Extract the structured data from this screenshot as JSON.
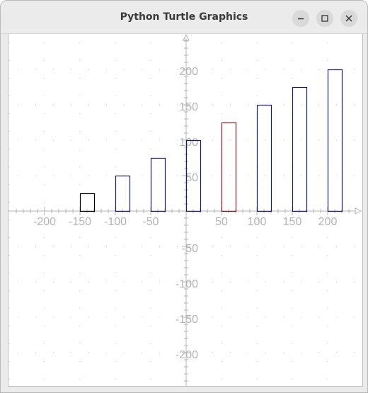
{
  "window": {
    "title": "Python Turtle Graphics",
    "buttons": [
      "minimize",
      "maximize",
      "close"
    ]
  },
  "colors": {
    "axis": "#b5b5b5",
    "grid": "#bdbdbd",
    "tick_label": "#b4b4b4",
    "bar_default": "#000000",
    "bar_blue": "#1a1a6e",
    "bar_red": "#7a1a1a"
  },
  "chart_data": {
    "type": "bar",
    "xlim": [
      -250,
      250
    ],
    "ylim": [
      -250,
      250
    ],
    "grid": true,
    "x_ticks": [
      -200,
      -150,
      -100,
      -50,
      50,
      100,
      150,
      200
    ],
    "y_ticks": [
      -200,
      -150,
      -100,
      -50,
      50,
      100,
      150,
      200
    ],
    "x_tick_labels": [
      "-200",
      "-150",
      "-100",
      "-50",
      "50",
      "100",
      "150",
      "200"
    ],
    "y_tick_labels": [
      "-200",
      "-150",
      "-100",
      "-50",
      "50",
      "100",
      "150",
      "200"
    ],
    "bar_width": 20,
    "bars": [
      {
        "x": -150,
        "value": 25,
        "color": "#000000"
      },
      {
        "x": -100,
        "value": 50,
        "color": "#1a1a6e"
      },
      {
        "x": -50,
        "value": 75,
        "color": "#1a1a6e"
      },
      {
        "x": 0,
        "value": 100,
        "color": "#1a1a6e"
      },
      {
        "x": 50,
        "value": 125,
        "color": "#7a1a1a"
      },
      {
        "x": 100,
        "value": 150,
        "color": "#1a1a6e"
      },
      {
        "x": 150,
        "value": 175,
        "color": "#1a1a6e"
      },
      {
        "x": 200,
        "value": 200,
        "color": "#1a1a6e"
      }
    ]
  }
}
